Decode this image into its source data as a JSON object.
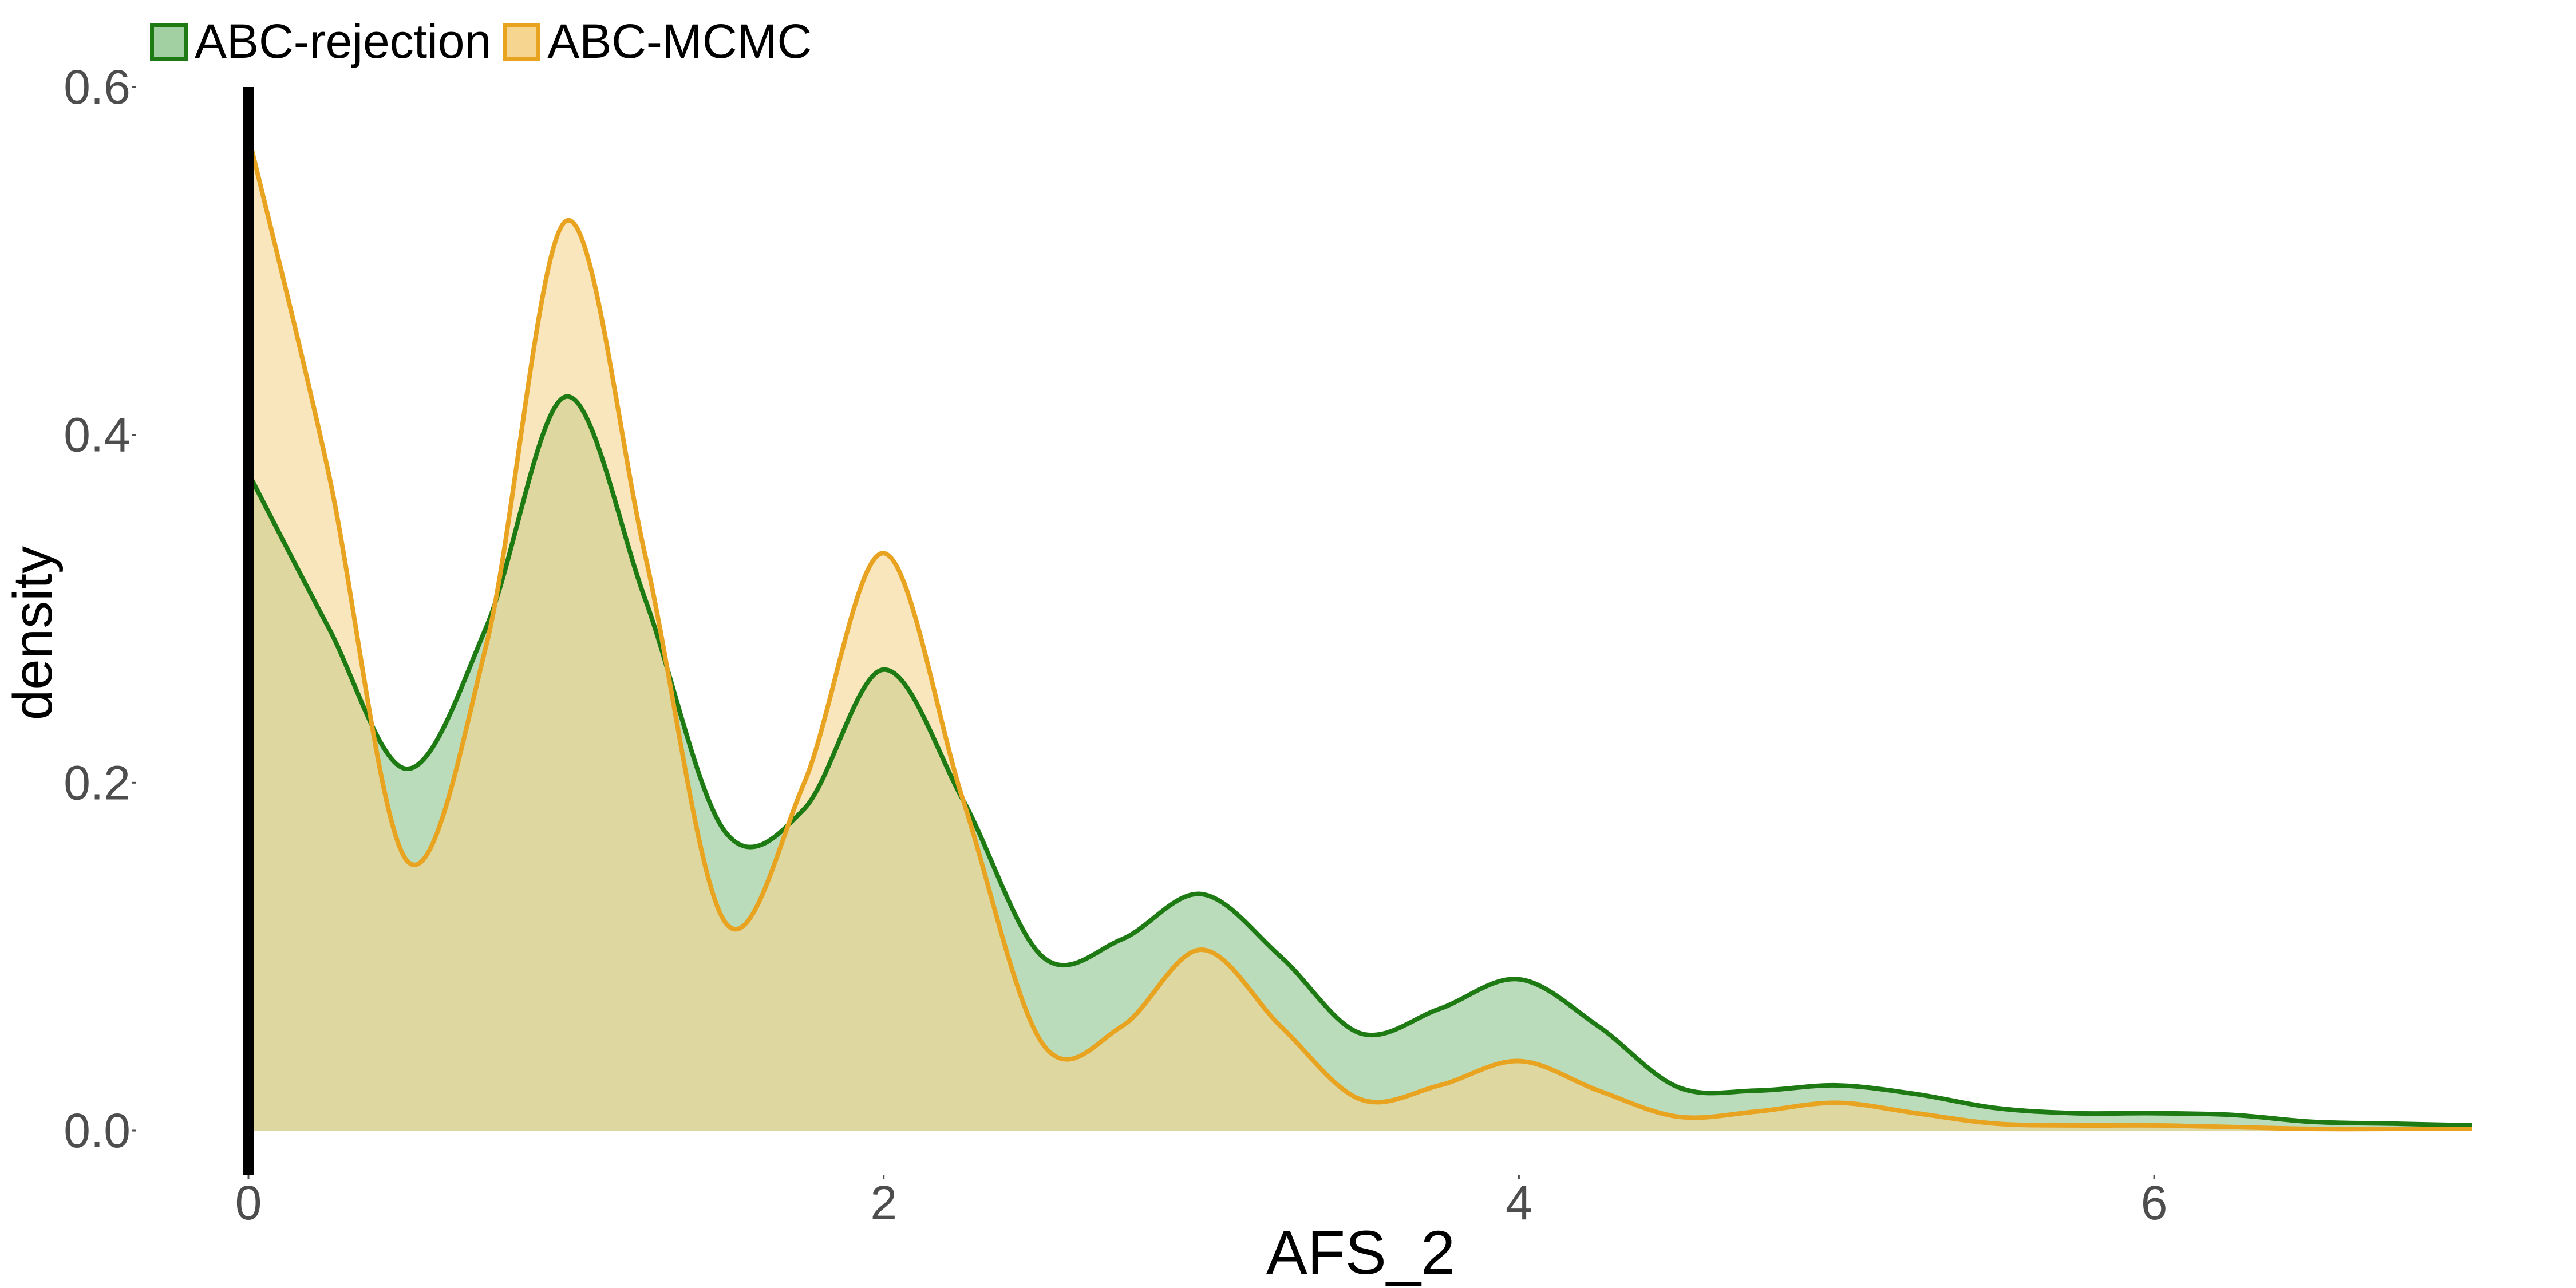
{
  "chart_data": {
    "type": "area",
    "title": "",
    "xlabel": "AFS_2",
    "ylabel": "density",
    "xlim": [
      0,
      7
    ],
    "ylim": [
      0,
      0.6
    ],
    "x_ticks": [
      0,
      2,
      4,
      6
    ],
    "x_tick_labels": [
      "0",
      "2",
      "4",
      "6"
    ],
    "y_ticks": [
      0.0,
      0.2,
      0.4,
      0.6
    ],
    "y_tick_labels": [
      "0.0",
      "0.2",
      "0.4",
      "0.6"
    ],
    "grid": false,
    "legend_position": "top-left",
    "x": [
      0,
      0.25,
      0.5,
      0.75,
      1,
      1.25,
      1.5,
      1.75,
      2,
      2.25,
      2.5,
      2.75,
      3,
      3.25,
      3.5,
      3.75,
      4,
      4.25,
      4.5,
      4.75,
      5,
      5.25,
      5.5,
      5.75,
      6,
      6.25,
      6.5,
      6.75,
      7
    ],
    "series": [
      {
        "name": "ABC-rejection",
        "line_color": "#1e7b14",
        "fill_color": "#a3d0a3",
        "values": [
          0.378,
          0.29,
          0.208,
          0.29,
          0.422,
          0.305,
          0.172,
          0.185,
          0.265,
          0.19,
          0.1,
          0.11,
          0.136,
          0.1,
          0.056,
          0.07,
          0.087,
          0.06,
          0.025,
          0.023,
          0.026,
          0.021,
          0.013,
          0.01,
          0.01,
          0.009,
          0.005,
          0.004,
          0.003
        ]
      },
      {
        "name": "ABC-MCMC",
        "line_color": "#e8a421",
        "fill_color": "#f6d590",
        "values": [
          0.572,
          0.38,
          0.155,
          0.28,
          0.523,
          0.33,
          0.12,
          0.2,
          0.332,
          0.19,
          0.05,
          0.06,
          0.104,
          0.06,
          0.018,
          0.026,
          0.04,
          0.023,
          0.008,
          0.011,
          0.016,
          0.01,
          0.004,
          0.003,
          0.003,
          0.002,
          0.001,
          0.001,
          0.001
        ]
      }
    ]
  }
}
